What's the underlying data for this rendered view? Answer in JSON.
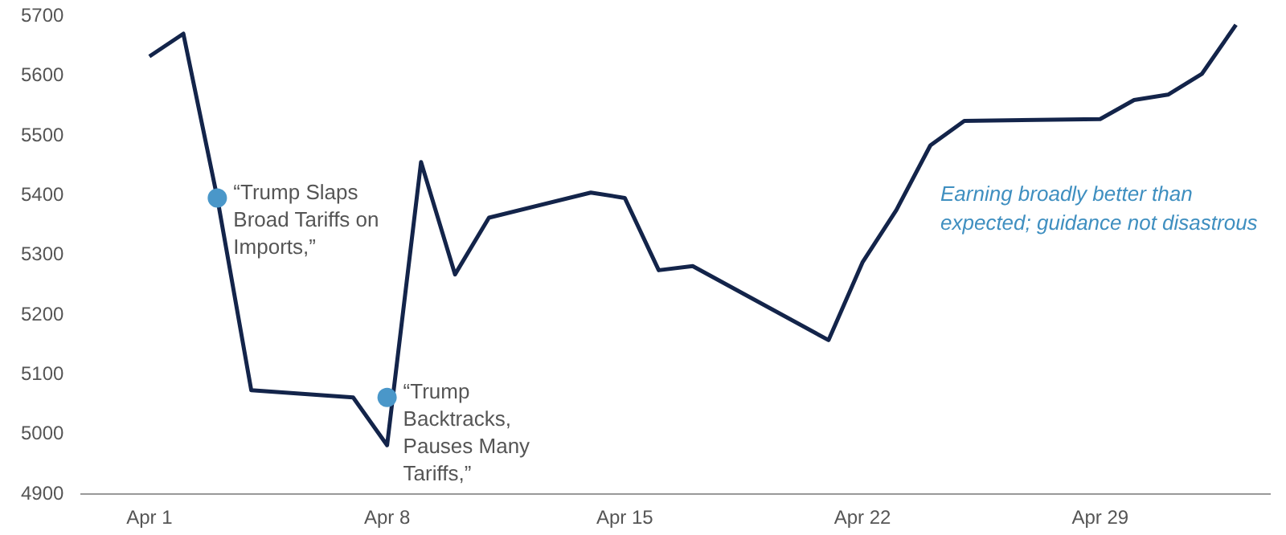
{
  "chart_data": {
    "type": "line",
    "x": [
      "--04-01",
      "--04-02",
      "--04-03",
      "--04-04",
      "--04-07",
      "--04-08",
      "--04-09",
      "--04-10",
      "--04-11",
      "--04-14",
      "--04-15",
      "--04-16",
      "--04-17",
      "--04-21",
      "--04-22",
      "--04-23",
      "--04-24",
      "--04-25",
      "--04-29",
      "--04-30",
      "--05-01",
      "--05-02",
      "--05-03"
    ],
    "series": [
      {
        "color": "#13244a",
        "values": [
          5633,
          5671,
          5396,
          5074,
          5062,
          4982,
          5456,
          5268,
          5363,
          5405,
          5396,
          5275,
          5282,
          5158,
          5288,
          5376,
          5484,
          5525,
          5528,
          5560,
          5569,
          5604,
          5686
        ]
      }
    ],
    "xlim": [
      "--03-30",
      "--05-04"
    ],
    "xticks": [
      {
        "value": "--04-01",
        "label": "Apr 1"
      },
      {
        "value": "--04-08",
        "label": "Apr 8"
      },
      {
        "value": "--04-15",
        "label": "Apr 15"
      },
      {
        "value": "--04-22",
        "label": "Apr 22"
      },
      {
        "value": "--04-29",
        "label": "Apr 29"
      }
    ],
    "ylim": [
      4900,
      5700
    ],
    "yticks": [
      4900,
      5000,
      5100,
      5200,
      5300,
      5400,
      5500,
      5600,
      5700
    ],
    "grid": false,
    "legend": false,
    "marker": "none",
    "line_style": "solid",
    "annotations": [
      {
        "text": "“Trump Slaps Broad Tariffs on Imports,”",
        "x": "--04-03",
        "y": 5396
      },
      {
        "text": "“Trump Backtracks, Pauses Many Tariffs,”",
        "x": "--04-08",
        "y": 5062
      },
      "Earning broadly better than expected; guidance not disastrous"
    ]
  }
}
